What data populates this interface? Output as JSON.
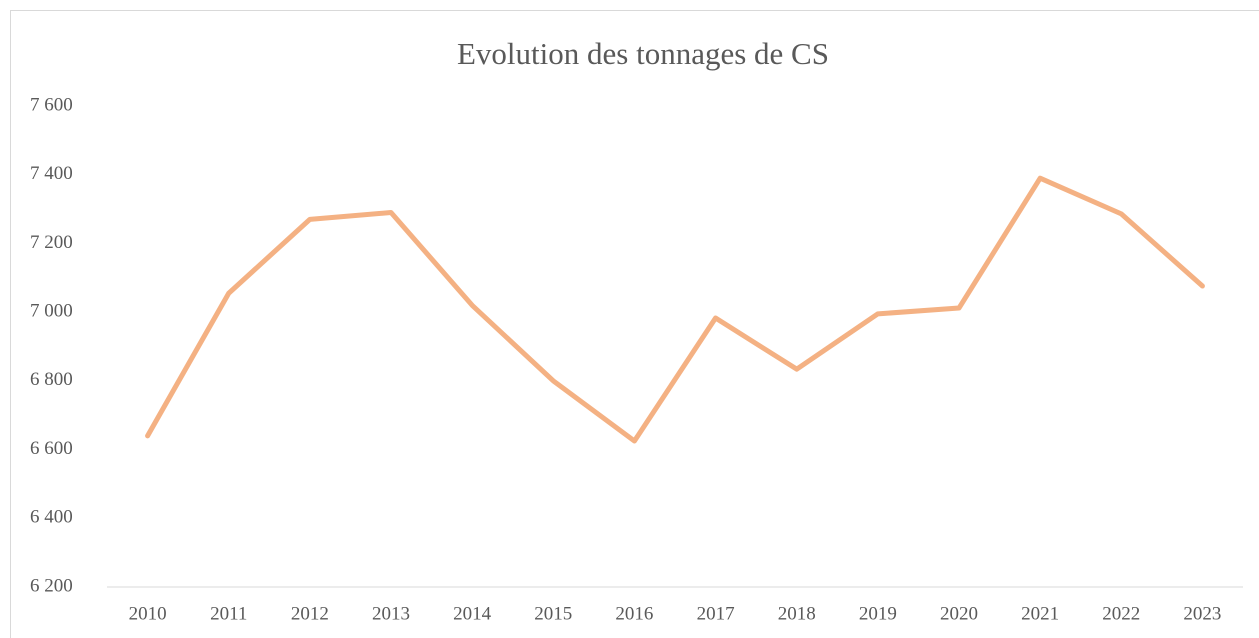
{
  "chart_data": {
    "type": "line",
    "title": "Evolution des tonnages de CS",
    "categories": [
      "2010",
      "2011",
      "2012",
      "2013",
      "2014",
      "2015",
      "2016",
      "2017",
      "2018",
      "2019",
      "2020",
      "2021",
      "2022",
      "2023"
    ],
    "values": [
      6640,
      7055,
      7270,
      7290,
      7020,
      6800,
      6625,
      6983,
      6834,
      6995,
      7012,
      7390,
      7286,
      7076
    ],
    "color": "#f4b183",
    "ylim": [
      6200,
      7600
    ],
    "yticks": [
      {
        "value": 6200,
        "label": "6 200"
      },
      {
        "value": 6400,
        "label": "6 400"
      },
      {
        "value": 6600,
        "label": "6 600"
      },
      {
        "value": 6800,
        "label": "6 800"
      },
      {
        "value": 7000,
        "label": "7 000"
      },
      {
        "value": 7200,
        "label": "7 200"
      },
      {
        "value": 7400,
        "label": "7 400"
      },
      {
        "value": 7600,
        "label": "7 600"
      }
    ],
    "grid": false
  }
}
